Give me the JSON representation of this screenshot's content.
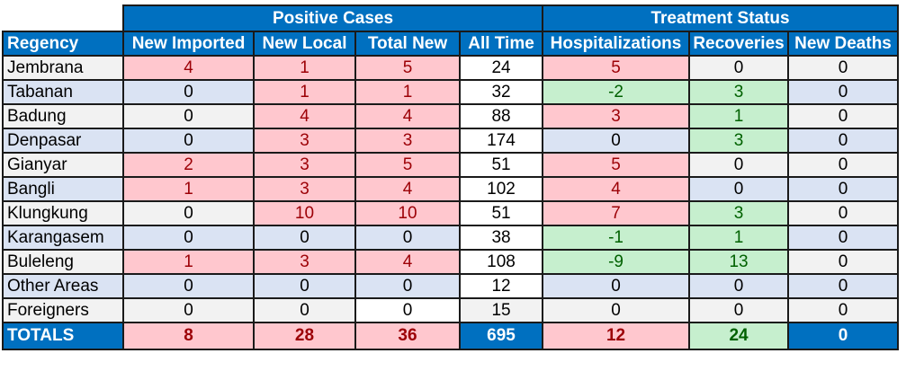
{
  "groups": {
    "positive_cases": "Positive Cases",
    "treatment_status": "Treatment Status"
  },
  "columns": [
    "Regency",
    "New Imported",
    "New Local",
    "Total New",
    "All Time",
    "Hospitalizations",
    "Recoveries",
    "New Deaths"
  ],
  "rows": [
    {
      "name": "Jembrana",
      "values": [
        "4",
        "1",
        "5",
        "24",
        "5",
        "0",
        "0"
      ]
    },
    {
      "name": "Tabanan",
      "values": [
        "0",
        "1",
        "1",
        "32",
        "-2",
        "3",
        "0"
      ]
    },
    {
      "name": "Badung",
      "values": [
        "0",
        "4",
        "4",
        "88",
        "3",
        "1",
        "0"
      ]
    },
    {
      "name": "Denpasar",
      "values": [
        "0",
        "3",
        "3",
        "174",
        "0",
        "3",
        "0"
      ]
    },
    {
      "name": "Gianyar",
      "values": [
        "2",
        "3",
        "5",
        "51",
        "5",
        "0",
        "0"
      ]
    },
    {
      "name": "Bangli",
      "values": [
        "1",
        "3",
        "4",
        "102",
        "4",
        "0",
        "0"
      ]
    },
    {
      "name": "Klungkung",
      "values": [
        "0",
        "10",
        "10",
        "51",
        "7",
        "3",
        "0"
      ]
    },
    {
      "name": "Karangasem",
      "values": [
        "0",
        "0",
        "0",
        "38",
        "-1",
        "1",
        "0"
      ]
    },
    {
      "name": "Buleleng",
      "values": [
        "1",
        "3",
        "4",
        "108",
        "-9",
        "13",
        "0"
      ]
    },
    {
      "name": "Other Areas",
      "values": [
        "0",
        "0",
        "0",
        "12",
        "0",
        "0",
        "0"
      ]
    },
    {
      "name": "Foreigners",
      "values": [
        "0",
        "0",
        "0",
        "15",
        "0",
        "0",
        "0"
      ]
    }
  ],
  "totals": {
    "label": "TOTALS",
    "values": [
      "8",
      "28",
      "36",
      "695",
      "12",
      "24",
      "0"
    ]
  },
  "colors": {
    "header_blue": "#0070c0",
    "positive_fill": "#ffc7ce",
    "positive_text": "#9c0006",
    "negative_fill": "#c6efce",
    "negative_text": "#006100",
    "row_band_light": "#f2f2f2",
    "row_band_blue": "#dae3f3"
  }
}
